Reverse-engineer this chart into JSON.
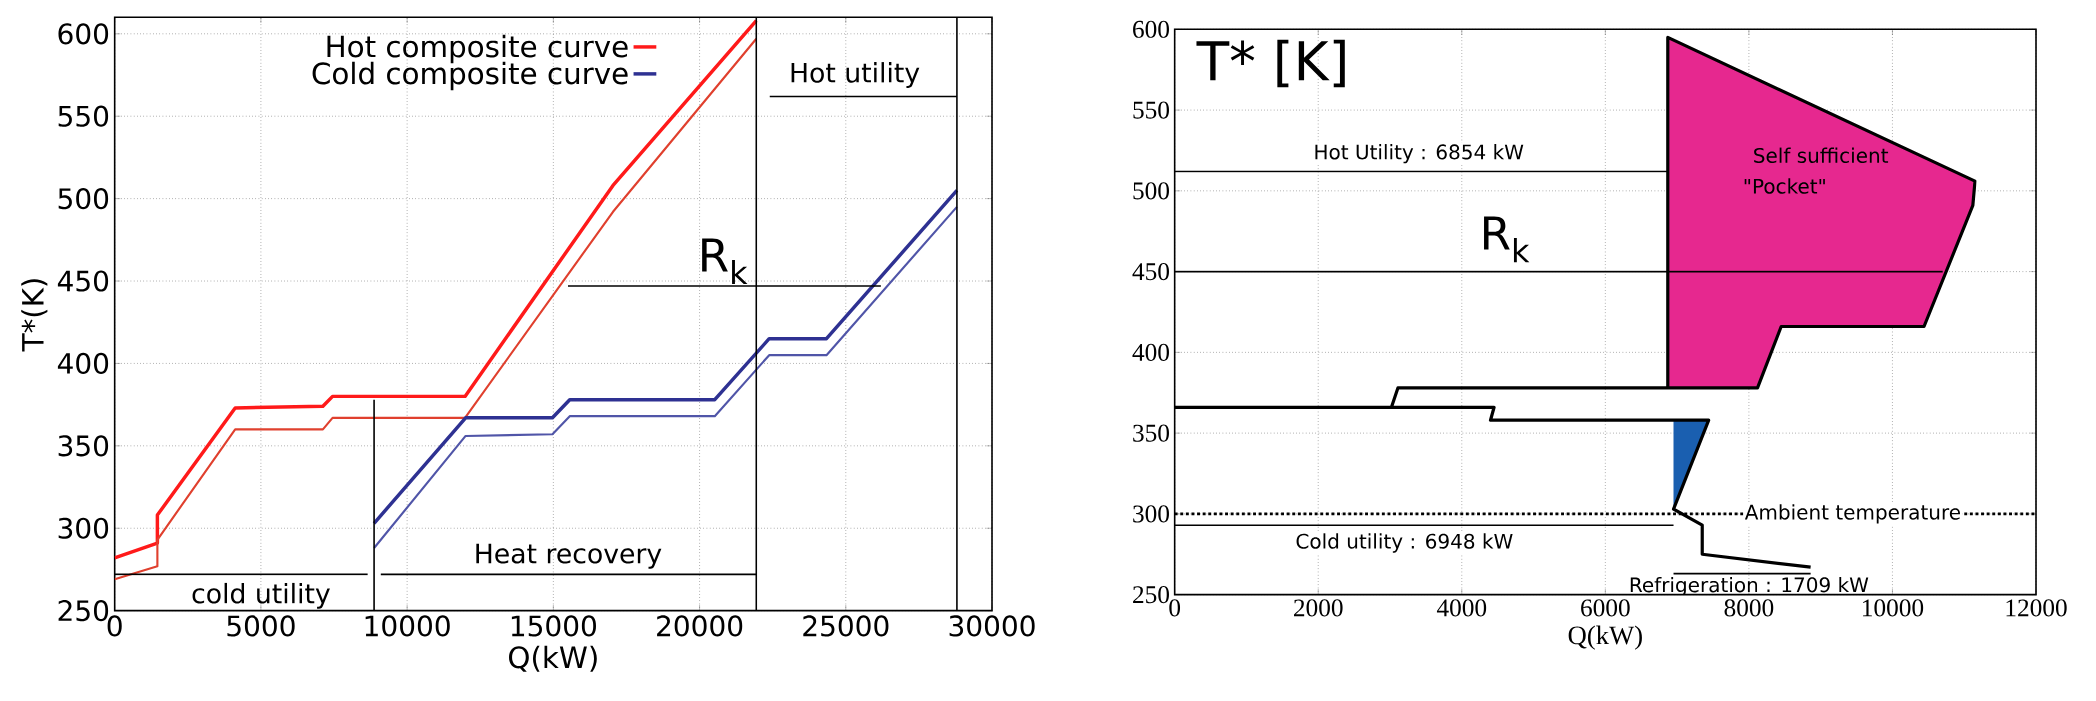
{
  "chart_data": [
    {
      "type": "line",
      "xlabel": "Q(kW)",
      "ylabel": "T*(K)",
      "xlim": [
        0,
        30000
      ],
      "ylim": [
        250,
        610
      ],
      "xticks": [
        0,
        5000,
        10000,
        15000,
        20000,
        25000,
        30000
      ],
      "yticks": [
        250,
        300,
        350,
        400,
        450,
        500,
        550,
        600
      ],
      "grid": true,
      "legend": "top",
      "series": [
        {
          "name": "Hot composite curve",
          "color": "#ff1a1a",
          "x": [
            0,
            1460,
            1460,
            4120,
            7120,
            7450,
            11980,
            17040,
            21940
          ],
          "values": [
            282,
            291,
            308,
            373,
            374,
            380,
            380,
            508,
            608
          ]
        },
        {
          "color": "#e0402e",
          "x": [
            0,
            1460,
            1460,
            4120,
            7120,
            7450,
            11980,
            17040,
            21940
          ],
          "values": [
            269,
            277,
            293,
            360,
            360,
            367,
            367,
            492,
            597
          ]
        },
        {
          "name": "Cold composite curve",
          "color": "#2e3192",
          "x": [
            8870,
            12000,
            14970,
            15560,
            20520,
            22380,
            24340,
            28800
          ],
          "values": [
            303,
            367,
            367,
            378,
            378,
            415,
            415,
            505
          ]
        },
        {
          "color": "#5055a8",
          "x": [
            8870,
            12000,
            14970,
            15560,
            20520,
            22380,
            24340,
            28800
          ],
          "values": [
            288,
            356,
            357,
            368,
            368,
            405,
            405,
            495
          ]
        },
        {
          "color": "#000000",
          "x": [
            8870,
            8870
          ],
          "values": [
            250,
            378
          ]
        },
        {
          "color": "#000000",
          "x": [
            0,
            8650
          ],
          "values": [
            272,
            272
          ]
        },
        {
          "color": "#000000",
          "x": [
            9100,
            21940
          ],
          "values": [
            272,
            272
          ]
        },
        {
          "color": "#000000",
          "x": [
            22400,
            28800
          ],
          "values": [
            562,
            562
          ]
        },
        {
          "color": "#000000",
          "x": [
            15500,
            26200
          ],
          "values": [
            447,
            447
          ]
        }
      ],
      "ref_lines": [
        {
          "axis": "x",
          "value": 21940,
          "color": "#000000"
        },
        {
          "axis": "x",
          "value": 28800,
          "color": "#000000"
        }
      ],
      "annotations": [
        "Hot utility",
        "R$_{k}$",
        "Heat recovery",
        "cold utility"
      ]
    },
    {
      "type": "line",
      "xlabel": "Q(kW)",
      "ylabel": "T* [K]",
      "xlim": [
        0,
        12000
      ],
      "ylim": [
        250,
        600
      ],
      "xticks": [
        0,
        2000,
        4000,
        6000,
        8000,
        10000,
        12000
      ],
      "yticks": [
        250,
        300,
        350,
        400,
        450,
        500,
        550,
        600
      ],
      "grid": true,
      "series": [
        {
          "type": "area",
          "color": "#e6288f",
          "x": [
            6870,
            11150,
            11120,
            10440,
            8450,
            8120,
            6870
          ],
          "values": [
            595,
            506,
            491,
            416,
            416,
            378,
            378
          ]
        },
        {
          "type": "area",
          "color": "#1a5fb0",
          "x": [
            6950,
            7440,
            6950
          ],
          "values": [
            358,
            358,
            303
          ]
        },
        {
          "color": "#000000",
          "x": [
            6870,
            6870,
            11150,
            11120,
            10440,
            8450,
            8120,
            3110,
            3020,
            0,
            4450,
            4400,
            7440,
            6950,
            7350,
            7350,
            8860
          ],
          "values": [
            378,
            595,
            506,
            491,
            416,
            416,
            378,
            378,
            366,
            366,
            366,
            358,
            358,
            303,
            293,
            275,
            267
          ]
        },
        {
          "color": "#000000",
          "x": [
            0,
            6870
          ],
          "values": [
            512,
            512
          ]
        },
        {
          "color": "#000000",
          "x": [
            0,
            10700
          ],
          "values": [
            450,
            450
          ]
        },
        {
          "color": "#000000",
          "x": [
            0,
            6950
          ],
          "values": [
            293,
            293
          ]
        },
        {
          "color": "#000000",
          "x": [
            6950,
            8860
          ],
          "values": [
            263,
            263
          ]
        }
      ],
      "ref_lines": [
        {
          "axis": "y",
          "value": 300,
          "label": "Ambient temperature",
          "color": "#000000",
          "line_style": "dotted"
        }
      ],
      "annotations": [
        "Hot Utility : 6854 kW",
        "R$_{k}$",
        "Self sufficient",
        "\"Pocket\"",
        "Cold utility : 6948 kW",
        "Refrigeration : 1709 kW"
      ]
    }
  ]
}
